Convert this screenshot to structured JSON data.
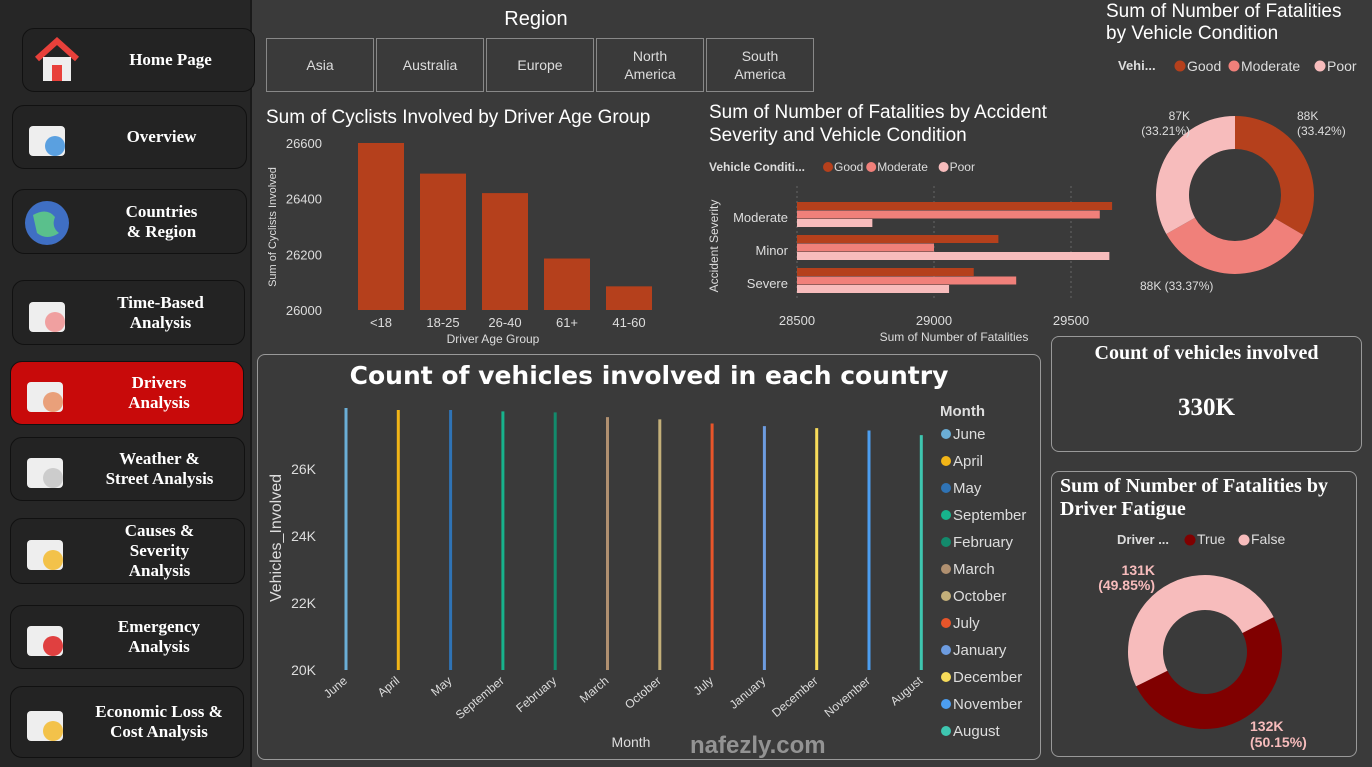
{
  "sidebar": {
    "items": [
      {
        "label": "Home Page",
        "icon": "home-icon",
        "active": false
      },
      {
        "label": "Overview",
        "icon": "presentation-magnifier-icon",
        "active": false
      },
      {
        "label": "Countries\n& Region",
        "icon": "globe-pin-icon",
        "active": false
      },
      {
        "label": "Time-Based\nAnalysis",
        "icon": "calendar-alert-icon",
        "active": false
      },
      {
        "label": "Drivers\nAnalysis",
        "icon": "driver-icon",
        "active": true
      },
      {
        "label": "Weather &\nStreet Analysis",
        "icon": "weather-icon",
        "active": false
      },
      {
        "label": "Causes &\nSeverity\nAnalysis",
        "icon": "warning-search-icon",
        "active": false
      },
      {
        "label": "Emergency\nAnalysis",
        "icon": "ambulance-icon",
        "active": false
      },
      {
        "label": "Economic Loss &\nCost Analysis",
        "icon": "money-chart-icon",
        "active": false
      }
    ],
    "active_color": "#c80a0a"
  },
  "region_slicer": {
    "title": "Region",
    "options": [
      "Asia",
      "Australia",
      "Europe",
      "North\nAmerica",
      "South\nAmerica"
    ]
  },
  "kpi": {
    "title": "Count of vehicles involved",
    "value": "330K"
  },
  "watermark": "nafezly.com",
  "chart_data": [
    {
      "id": "cyclists",
      "type": "bar",
      "title": "Sum of Cyclists Involved by Driver Age Group",
      "xlabel": "Driver Age Group",
      "ylabel": "Sum of Cyclists Involved",
      "categories": [
        "<18",
        "18-25",
        "26-40",
        "61+",
        "41-60"
      ],
      "values": [
        26600,
        26490,
        26420,
        26185,
        26085
      ],
      "ylim": [
        26000,
        26600
      ],
      "yticks": [
        26000,
        26200,
        26400,
        26600
      ],
      "color": "#b5401c",
      "grid": false
    },
    {
      "id": "severity",
      "type": "bar",
      "orientation": "horizontal",
      "title": "Sum of Number of Fatalities by Accident Severity and Vehicle Condition",
      "xlabel": "Sum of Number of Fatalities",
      "ylabel": "Accident Severity",
      "legend_title": "Vehicle Conditi...",
      "legend_position": "top-left",
      "categories": [
        "Moderate",
        "Minor",
        "Severe"
      ],
      "series": [
        {
          "name": "Good",
          "color": "#b5401c",
          "values": [
            29650,
            29235,
            29145
          ]
        },
        {
          "name": "Moderate",
          "color": "#f0807a",
          "values": [
            29605,
            29000,
            29300
          ]
        },
        {
          "name": "Poor",
          "color": "#f7bcbc",
          "values": [
            28775,
            29640,
            29055
          ]
        }
      ],
      "xlim": [
        28500,
        29650
      ],
      "xticks": [
        28500,
        29000,
        29500
      ],
      "grid": true
    },
    {
      "id": "vehicle_condition",
      "type": "pie",
      "donut": true,
      "title": "Sum of Number of Fatalities by Vehicle Condition",
      "legend_title": "Vehi...",
      "legend_position": "top",
      "slices": [
        {
          "name": "Good",
          "label": "88K",
          "percent": "33.42%",
          "value": 33.42,
          "color": "#b5401c"
        },
        {
          "name": "Moderate",
          "label": "88K",
          "percent": "33.37%",
          "value": 33.37,
          "color": "#f0807a"
        },
        {
          "name": "Poor",
          "label": "87K",
          "percent": "33.21%",
          "value": 33.21,
          "color": "#f7bcbc"
        }
      ]
    },
    {
      "id": "monthly",
      "type": "bar",
      "title": "Count of vehicles involved in each country",
      "xlabel": "Month",
      "ylabel": "Vehicles_Involved",
      "legend_title": "Month",
      "legend_position": "right",
      "categories": [
        "June",
        "April",
        "May",
        "September",
        "February",
        "March",
        "October",
        "July",
        "January",
        "December",
        "November",
        "August"
      ],
      "values": [
        27820,
        27760,
        27760,
        27720,
        27690,
        27550,
        27480,
        27360,
        27280,
        27220,
        27150,
        27010
      ],
      "colors": [
        "#6baed6",
        "#f2b517",
        "#2f73b5",
        "#17b38c",
        "#138a6c",
        "#b09070",
        "#c4b07a",
        "#e8552a",
        "#6d9ce0",
        "#f8dc5a",
        "#4c9ef0",
        "#3ec6b0"
      ],
      "ylim": [
        20000,
        27900
      ],
      "yticks": [
        "20K",
        "22K",
        "24K",
        "26K"
      ],
      "ytick_values": [
        20000,
        22000,
        24000,
        26000
      ],
      "grid": false
    },
    {
      "id": "fatigue",
      "type": "pie",
      "donut": true,
      "title": "Sum of Number of Fatalities by Driver Fatigue",
      "legend_title": "Driver ...",
      "legend_position": "top",
      "slices": [
        {
          "name": "True",
          "label": "132K",
          "percent": "50.15%",
          "value": 50.15,
          "color": "#800000"
        },
        {
          "name": "False",
          "label": "131K",
          "percent": "49.85%",
          "value": 49.85,
          "color": "#f7bcbc"
        }
      ]
    }
  ]
}
